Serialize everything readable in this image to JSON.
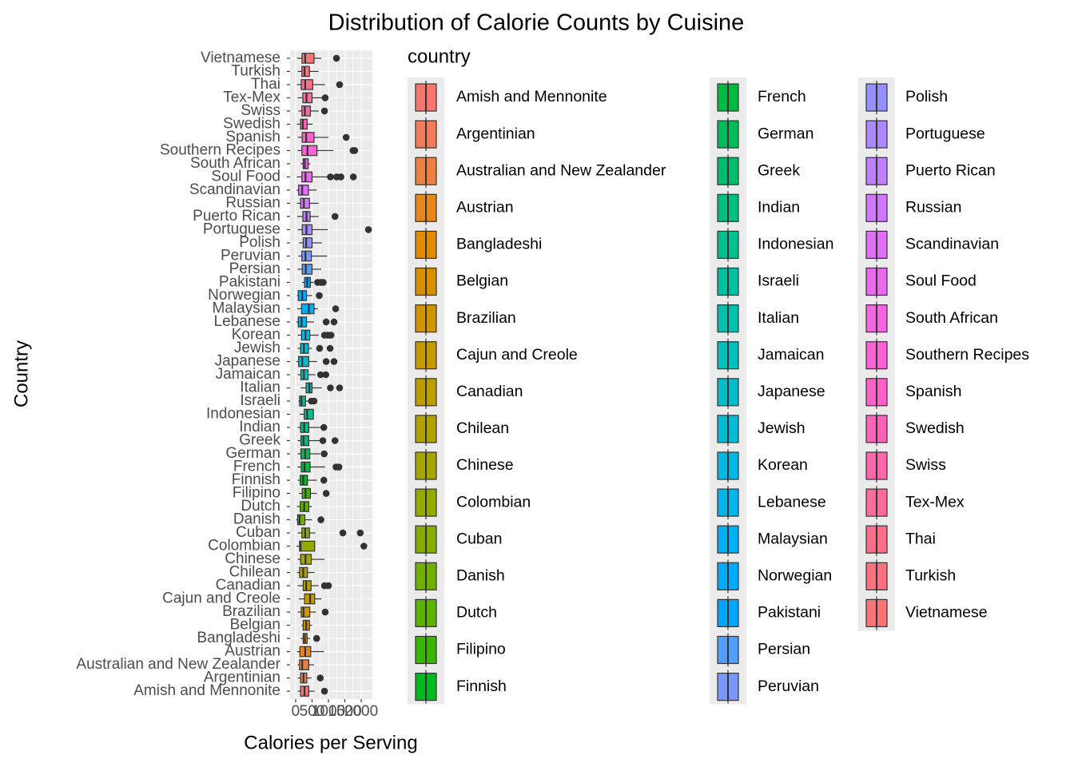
{
  "chart_data": {
    "type": "boxplot",
    "title": "Distribution of Calorie Counts by Cuisine",
    "x_label": "Calories per Serving",
    "y_label": "Country",
    "legend_title": "country",
    "grid": true,
    "xlim": [
      -170,
      2340
    ],
    "xticks": [
      0,
      500,
      1000,
      1500,
      2000
    ],
    "categories": [
      "Amish and Mennonite",
      "Argentinian",
      "Australian and New Zealander",
      "Austrian",
      "Bangladeshi",
      "Belgian",
      "Brazilian",
      "Cajun and Creole",
      "Canadian",
      "Chilean",
      "Chinese",
      "Colombian",
      "Cuban",
      "Danish",
      "Dutch",
      "Filipino",
      "Finnish",
      "French",
      "German",
      "Greek",
      "Indian",
      "Indonesian",
      "Israeli",
      "Italian",
      "Jamaican",
      "Japanese",
      "Jewish",
      "Korean",
      "Lebanese",
      "Malaysian",
      "Norwegian",
      "Pakistani",
      "Persian",
      "Peruvian",
      "Polish",
      "Portuguese",
      "Puerto Rican",
      "Russian",
      "Scandinavian",
      "Soul Food",
      "South African",
      "Southern Recipes",
      "Spanish",
      "Swedish",
      "Swiss",
      "Tex-Mex",
      "Thai",
      "Turkish",
      "Vietnamese"
    ],
    "colors": [
      "#F8766D",
      "#F37B59",
      "#ED8141",
      "#E7861B",
      "#E08B00",
      "#D89000",
      "#CF9400",
      "#C59900",
      "#BB9D00",
      "#AFA100",
      "#A3A500",
      "#95A900",
      "#85AD00",
      "#72B000",
      "#5BB300",
      "#39B600",
      "#00B81F",
      "#00BA42",
      "#00BC59",
      "#00BD6D",
      "#00BF7F",
      "#00C08F",
      "#00C09F",
      "#00C0AE",
      "#00BFBC",
      "#00BDC9",
      "#00BBD6",
      "#00B8E2",
      "#00B4EC",
      "#00B0F6",
      "#00ABFD",
      "#00A5FF",
      "#529EFF",
      "#7997FF",
      "#9590FF",
      "#AC88FF",
      "#C07FFF",
      "#D177FE",
      "#E06FF6",
      "#EB69EF",
      "#F564E3",
      "#FC61D5",
      "#FF61C8",
      "#FF63B9",
      "#FF67AA",
      "#FF6C9B",
      "#FE6E8B",
      "#FC717F",
      "#FA7476"
    ],
    "whisker_low": [
      60,
      60,
      60,
      40,
      150,
      180,
      60,
      100,
      60,
      40,
      60,
      20,
      60,
      20,
      40,
      100,
      60,
      60,
      60,
      60,
      60,
      120,
      80,
      150,
      60,
      20,
      60,
      60,
      20,
      50,
      40,
      200,
      60,
      80,
      100,
      60,
      50,
      40,
      30,
      40,
      150,
      60,
      60,
      40,
      80,
      60,
      40,
      60,
      40
    ],
    "q1": [
      150,
      150,
      120,
      130,
      230,
      230,
      170,
      270,
      230,
      120,
      150,
      120,
      190,
      60,
      140,
      200,
      140,
      170,
      160,
      160,
      150,
      260,
      120,
      320,
      160,
      90,
      150,
      180,
      80,
      180,
      80,
      270,
      200,
      190,
      230,
      200,
      220,
      150,
      90,
      190,
      230,
      190,
      200,
      150,
      190,
      220,
      170,
      190,
      195
    ],
    "median": [
      270,
      240,
      200,
      290,
      280,
      320,
      240,
      440,
      320,
      230,
      300,
      150,
      290,
      120,
      260,
      300,
      230,
      270,
      290,
      240,
      260,
      350,
      180,
      420,
      250,
      200,
      250,
      300,
      180,
      400,
      200,
      350,
      310,
      300,
      320,
      330,
      330,
      250,
      200,
      300,
      280,
      360,
      320,
      220,
      280,
      330,
      290,
      270,
      290
    ],
    "q3": [
      400,
      340,
      400,
      460,
      350,
      420,
      430,
      580,
      470,
      360,
      480,
      580,
      420,
      280,
      400,
      450,
      360,
      440,
      430,
      400,
      400,
      540,
      300,
      500,
      380,
      400,
      390,
      430,
      330,
      560,
      330,
      450,
      500,
      480,
      500,
      500,
      440,
      420,
      390,
      500,
      380,
      650,
      560,
      350,
      450,
      500,
      520,
      420,
      560
    ],
    "whisker_high": [
      580,
      480,
      560,
      860,
      440,
      500,
      620,
      780,
      700,
      570,
      880,
      600,
      600,
      500,
      500,
      650,
      650,
      900,
      750,
      750,
      750,
      560,
      400,
      800,
      600,
      650,
      500,
      700,
      560,
      680,
      500,
      550,
      780,
      960,
      800,
      980,
      700,
      700,
      640,
      1000,
      450,
      1150,
      1000,
      520,
      700,
      850,
      900,
      700,
      780
    ],
    "outliers": [
      [
        880
      ],
      [
        750
      ],
      [],
      [],
      [
        640
      ],
      [],
      [
        900
      ],
      [],
      [
        880,
        1000
      ],
      [],
      [],
      [
        2080
      ],
      [
        1440,
        1970
      ],
      [
        770
      ],
      [],
      [
        930
      ],
      [
        860
      ],
      [
        1230,
        1320
      ],
      [
        870
      ],
      [
        830,
        1200
      ],
      [
        860
      ],
      [],
      [
        480,
        560
      ],
      [
        1060,
        1340
      ],
      [
        760,
        920
      ],
      [
        930,
        1170
      ],
      [
        730,
        1050
      ],
      [
        880,
        970,
        1020,
        1080
      ],
      [
        930,
        1170
      ],
      [
        1220
      ],
      [
        720
      ],
      [
        670,
        770,
        840
      ],
      [],
      [],
      [],
      [
        2220
      ],
      [
        1200
      ],
      [],
      [],
      [
        1060,
        1250,
        1380,
        1760
      ],
      [],
      [
        1750,
        1800
      ],
      [
        1540
      ],
      [],
      [
        880
      ],
      [
        900
      ],
      [
        1340
      ],
      [],
      [
        1245
      ]
    ]
  }
}
